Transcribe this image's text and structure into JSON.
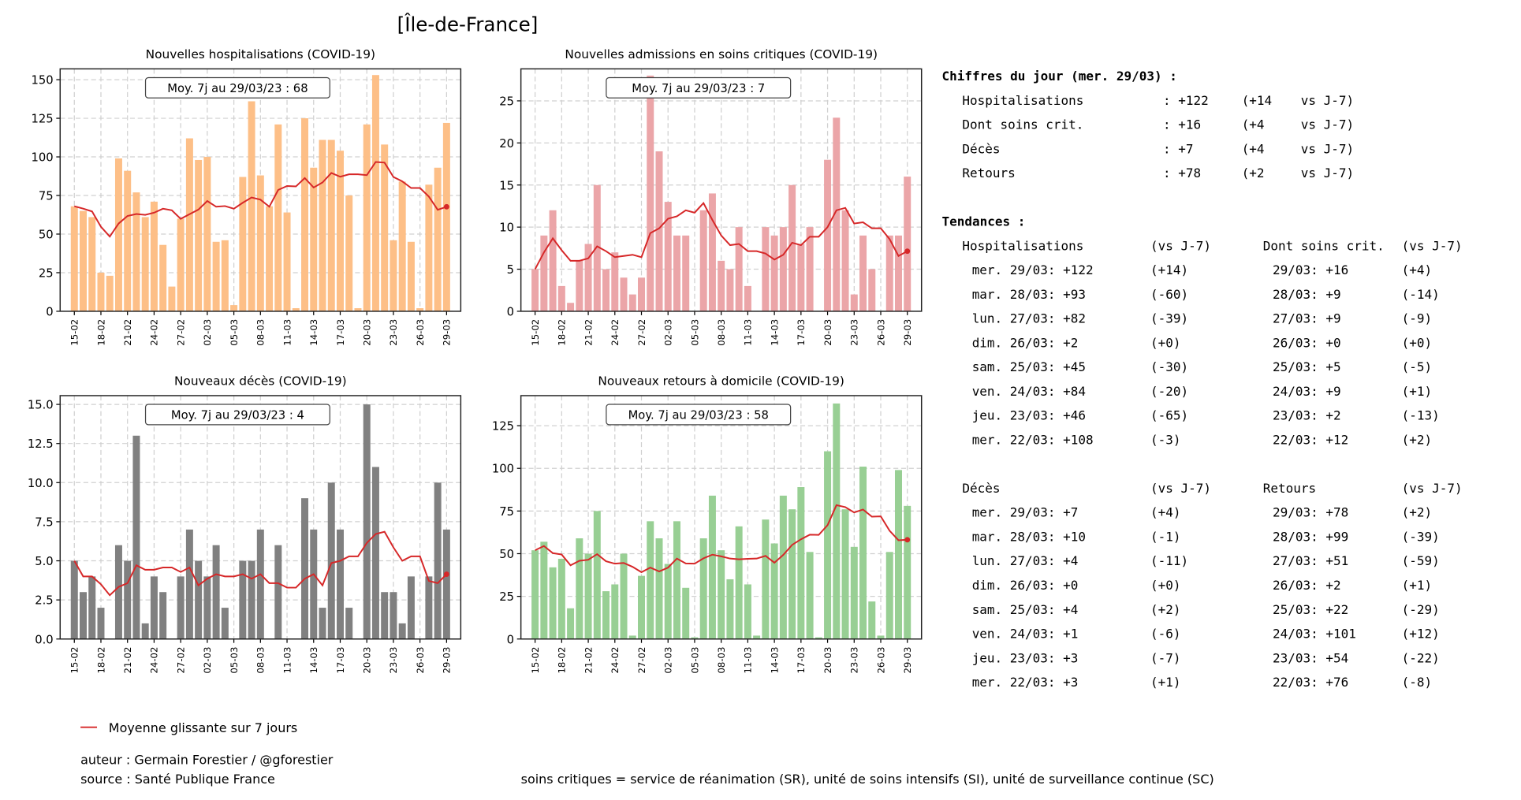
{
  "title": "[Île-de-France]",
  "chart_data": [
    {
      "type": "bar",
      "title": "Nouvelles hospitalisations (COVID-19)",
      "annotation": "Moy. 7j au 29/03/23 : 68",
      "color": "#fdbf87",
      "ylim": [
        0,
        157
      ],
      "yticks": [
        0,
        25,
        50,
        75,
        100,
        125,
        150
      ],
      "ytick_labels": [
        "0",
        "25",
        "50",
        "75",
        "100",
        "125",
        "150"
      ],
      "values": [
        68,
        65,
        61,
        25,
        23,
        99,
        91,
        77,
        61,
        71,
        43,
        16,
        60,
        112,
        98,
        100,
        45,
        46,
        4,
        87,
        136,
        88,
        68,
        121,
        64,
        2,
        125,
        93,
        111,
        111,
        104,
        75,
        2,
        121,
        153,
        108,
        46,
        84,
        45,
        2,
        82,
        93,
        122
      ]
    },
    {
      "type": "bar",
      "title": "Nouvelles admissions en soins critiques (COVID-19)",
      "annotation": "Moy. 7j au 29/03/23 : 7",
      "color": "#eba5a8",
      "ylim": [
        0,
        28.8
      ],
      "yticks": [
        0,
        5,
        10,
        15,
        20,
        25
      ],
      "ytick_labels": [
        "0",
        "5",
        "10",
        "15",
        "20",
        "25"
      ],
      "values": [
        5,
        9,
        12,
        3,
        1,
        6,
        8,
        15,
        5,
        7,
        4,
        2,
        4,
        28,
        19,
        13,
        9,
        9,
        0,
        12,
        14,
        6,
        5,
        10,
        3,
        0,
        10,
        9,
        10,
        15,
        8,
        10,
        0,
        18,
        23,
        12,
        2,
        9,
        5,
        0,
        9,
        9,
        16
      ]
    },
    {
      "type": "bar",
      "title": "Nouveaux décès (COVID-19)",
      "annotation": "Moy. 7j au 29/03/23 : 4",
      "color": "#808080",
      "ylim": [
        0,
        15.56
      ],
      "yticks": [
        0,
        2.5,
        5,
        7.5,
        10,
        12.5,
        15
      ],
      "ytick_labels": [
        "0.0",
        "2.5",
        "5.0",
        "7.5",
        "10.0",
        "12.5",
        "15.0"
      ],
      "values": [
        5,
        3,
        4,
        2,
        0,
        6,
        5,
        13,
        1,
        4,
        3,
        0,
        4,
        7,
        5,
        4,
        6,
        2,
        0,
        5,
        5,
        7,
        0,
        6,
        0,
        0,
        9,
        7,
        2,
        10,
        7,
        2,
        0,
        15,
        11,
        3,
        3,
        1,
        4,
        0,
        4,
        10,
        7
      ]
    },
    {
      "type": "bar",
      "title": "Nouveaux retours à domicile (COVID-19)",
      "annotation": "Moy. 7j au 29/03/23 : 58",
      "color": "#98cf94",
      "ylim": [
        0,
        142.6
      ],
      "yticks": [
        0,
        25,
        50,
        75,
        100,
        125
      ],
      "ytick_labels": [
        "0",
        "25",
        "50",
        "75",
        "100",
        "125"
      ],
      "values": [
        52,
        57,
        42,
        47,
        18,
        59,
        50,
        75,
        28,
        32,
        50,
        2,
        37,
        69,
        59,
        44,
        69,
        30,
        1,
        59,
        84,
        52,
        35,
        66,
        32,
        2,
        70,
        56,
        84,
        76,
        89,
        51,
        1,
        110,
        138,
        76,
        54,
        101,
        22,
        2,
        51,
        99,
        78
      ]
    }
  ],
  "x_tick_labels": [
    "15-02",
    "18-02",
    "21-02",
    "24-02",
    "27-02",
    "02-03",
    "05-03",
    "08-03",
    "11-03",
    "14-03",
    "17-03",
    "20-03",
    "23-03",
    "26-03",
    "29-03"
  ],
  "line_color": "#d62728",
  "summary": {
    "heading": "Chiffres du jour (mer. 29/03) :",
    "rows": [
      {
        "label": "Hospitalisations",
        "value": ": +122",
        "delta": "(+14",
        "ref": "vs J-7)"
      },
      {
        "label": "Dont soins crit.",
        "value": ": +16",
        "delta": "(+4",
        "ref": "vs J-7)"
      },
      {
        "label": "Décès",
        "value": ": +7",
        "delta": "(+4",
        "ref": "vs J-7)"
      },
      {
        "label": "Retours",
        "value": ": +78",
        "delta": "(+2",
        "ref": "vs J-7)"
      }
    ]
  },
  "trends": {
    "heading": "Tendances :",
    "blocks": [
      {
        "left_title": "Hospitalisations",
        "left_ref": "(vs J-7)",
        "right_title": "Dont soins crit.",
        "right_ref": "(vs J-7)",
        "rows": [
          {
            "l": "mer. 29/03: +122",
            "ld": "(+14)",
            "r": "29/03: +16",
            "rd": "(+4)"
          },
          {
            "l": "mar. 28/03: +93",
            "ld": "(-60)",
            "r": "28/03: +9",
            "rd": "(-14)"
          },
          {
            "l": "lun. 27/03: +82",
            "ld": "(-39)",
            "r": "27/03: +9",
            "rd": "(-9)"
          },
          {
            "l": "dim. 26/03: +2",
            "ld": "(+0)",
            "r": "26/03: +0",
            "rd": "(+0)"
          },
          {
            "l": "sam. 25/03: +45",
            "ld": "(-30)",
            "r": "25/03: +5",
            "rd": "(-5)"
          },
          {
            "l": "ven. 24/03: +84",
            "ld": "(-20)",
            "r": "24/03: +9",
            "rd": "(+1)"
          },
          {
            "l": "jeu. 23/03: +46",
            "ld": "(-65)",
            "r": "23/03: +2",
            "rd": "(-13)"
          },
          {
            "l": "mer. 22/03: +108",
            "ld": "(-3)",
            "r": "22/03: +12",
            "rd": "(+2)"
          }
        ]
      },
      {
        "left_title": "Décès",
        "left_ref": "(vs J-7)",
        "right_title": "Retours",
        "right_ref": "(vs J-7)",
        "rows": [
          {
            "l": "mer. 29/03: +7",
            "ld": "(+4)",
            "r": "29/03: +78",
            "rd": "(+2)"
          },
          {
            "l": "mar. 28/03: +10",
            "ld": "(-1)",
            "r": "28/03: +99",
            "rd": "(-39)"
          },
          {
            "l": "lun. 27/03: +4",
            "ld": "(-11)",
            "r": "27/03: +51",
            "rd": "(-59)"
          },
          {
            "l": "dim. 26/03: +0",
            "ld": "(+0)",
            "r": "26/03: +2",
            "rd": "(+1)"
          },
          {
            "l": "sam. 25/03: +4",
            "ld": "(+2)",
            "r": "25/03: +22",
            "rd": "(-29)"
          },
          {
            "l": "ven. 24/03: +1",
            "ld": "(-6)",
            "r": "24/03: +101",
            "rd": "(+12)"
          },
          {
            "l": "jeu. 23/03: +3",
            "ld": "(-7)",
            "r": "23/03: +54",
            "rd": "(-22)"
          },
          {
            "l": "mer. 22/03: +3",
            "ld": "(+1)",
            "r": "22/03: +76",
            "rd": "(-8)"
          }
        ]
      }
    ]
  },
  "footer": {
    "legend": "Moyenne glissante sur 7 jours",
    "author": "auteur : Germain Forestier / @gforestier",
    "source": "source : Santé Publique France",
    "note": "soins critiques = service de réanimation (SR), unité de soins intensifs (SI), unité de surveillance continue (SC)"
  }
}
